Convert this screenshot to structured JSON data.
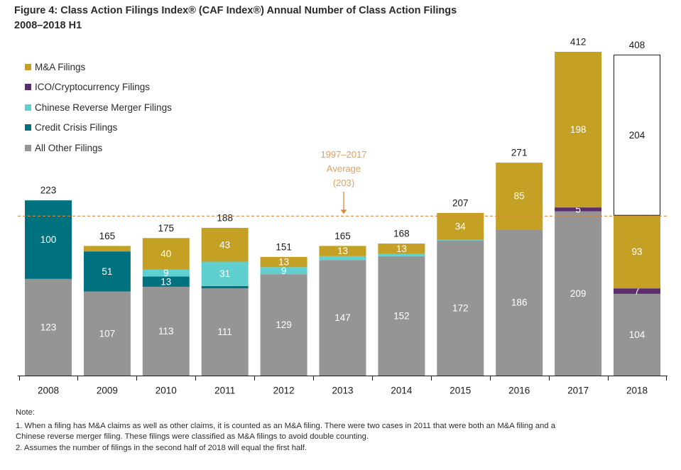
{
  "title": {
    "line1": "Figure 4: Class Action Filings Index® (CAF Index®) Annual Number of Class Action Filings",
    "line2": "2008–2018 H1"
  },
  "colors": {
    "ma": "#c4a124",
    "ico": "#5b2d6e",
    "chinese": "#5fcfcf",
    "credit": "#00727f",
    "other": "#959595",
    "avg_line": "#e0883a",
    "avg_text": "#e0a060"
  },
  "chart_data": {
    "type": "bar",
    "stacked": true,
    "categories": [
      "2008",
      "2009",
      "2010",
      "2011",
      "2012",
      "2013",
      "2014",
      "2015",
      "2016",
      "2017",
      "2018"
    ],
    "series": [
      {
        "key": "other",
        "name": "All Other Filings",
        "values": [
          123,
          107,
          113,
          111,
          129,
          147,
          152,
          172,
          186,
          209,
          104
        ],
        "labels": [
          "123",
          "107",
          "113",
          "111",
          "129",
          "147",
          "152",
          "172",
          "186",
          "209",
          "104"
        ]
      },
      {
        "key": "credit",
        "name": "Credit Crisis Filings",
        "values": [
          100,
          51,
          13,
          3,
          0,
          0,
          0,
          0,
          0,
          0,
          0
        ],
        "labels": [
          "100",
          "51",
          "13",
          "",
          "",
          "",
          "",
          "",
          "",
          "",
          ""
        ]
      },
      {
        "key": "chinese",
        "name": "Chinese Reverse Merger Filings",
        "values": [
          0,
          0,
          9,
          31,
          9,
          5,
          3,
          1,
          0,
          0,
          0
        ],
        "labels": [
          "",
          "",
          "9",
          "31",
          "9",
          "",
          "",
          "",
          "",
          "",
          ""
        ]
      },
      {
        "key": "ico",
        "name": "ICO/Cryptocurrency Filings",
        "values": [
          0,
          0,
          0,
          0,
          0,
          0,
          0,
          0,
          0,
          5,
          7
        ],
        "labels": [
          "",
          "",
          "",
          "",
          "",
          "",
          "",
          "",
          "",
          "5",
          "7"
        ]
      },
      {
        "key": "ma",
        "name": "M&A Filings",
        "values": [
          0,
          7,
          40,
          43,
          13,
          13,
          13,
          34,
          85,
          198,
          93
        ],
        "labels": [
          "",
          "",
          "40",
          "43",
          "13",
          "13",
          "13",
          "34",
          "85",
          "198",
          "93"
        ]
      },
      {
        "key": "projected",
        "name": "Projected H2 2018",
        "values": [
          0,
          0,
          0,
          0,
          0,
          0,
          0,
          0,
          0,
          0,
          204
        ],
        "labels": [
          "",
          "",
          "",
          "",
          "",
          "",
          "",
          "",
          "",
          "",
          "204"
        ]
      }
    ],
    "totals": [
      "223",
      "165",
      "175",
      "188",
      "151",
      "165",
      "168",
      "207",
      "271",
      "412",
      "408"
    ],
    "average": {
      "value": 203,
      "label_lines": [
        "1997–2017",
        "Average",
        "(203)"
      ]
    },
    "ylim": [
      0,
      420
    ],
    "xlabel": "",
    "ylabel": "",
    "legend_position": "top-left"
  },
  "legend": [
    {
      "key": "ma",
      "label": "M&A Filings"
    },
    {
      "key": "ico",
      "label": "ICO/Cryptocurrency Filings"
    },
    {
      "key": "chinese",
      "label": "Chinese Reverse Merger Filings"
    },
    {
      "key": "credit",
      "label": "Credit Crisis Filings"
    },
    {
      "key": "other",
      "label": "All Other Filings"
    }
  ],
  "notes": {
    "heading": "Note:",
    "line1": "1. When a filing has M&A claims as well as other claims, it is counted as an M&A filing. There were two cases in 2011 that were both an M&A filing and a",
    "line2": "Chinese reverse merger filing. These filings were classified as M&A filings to avoid double counting.",
    "line3": "2. Assumes the number of filings in the second half of 2018 will equal the first half."
  }
}
